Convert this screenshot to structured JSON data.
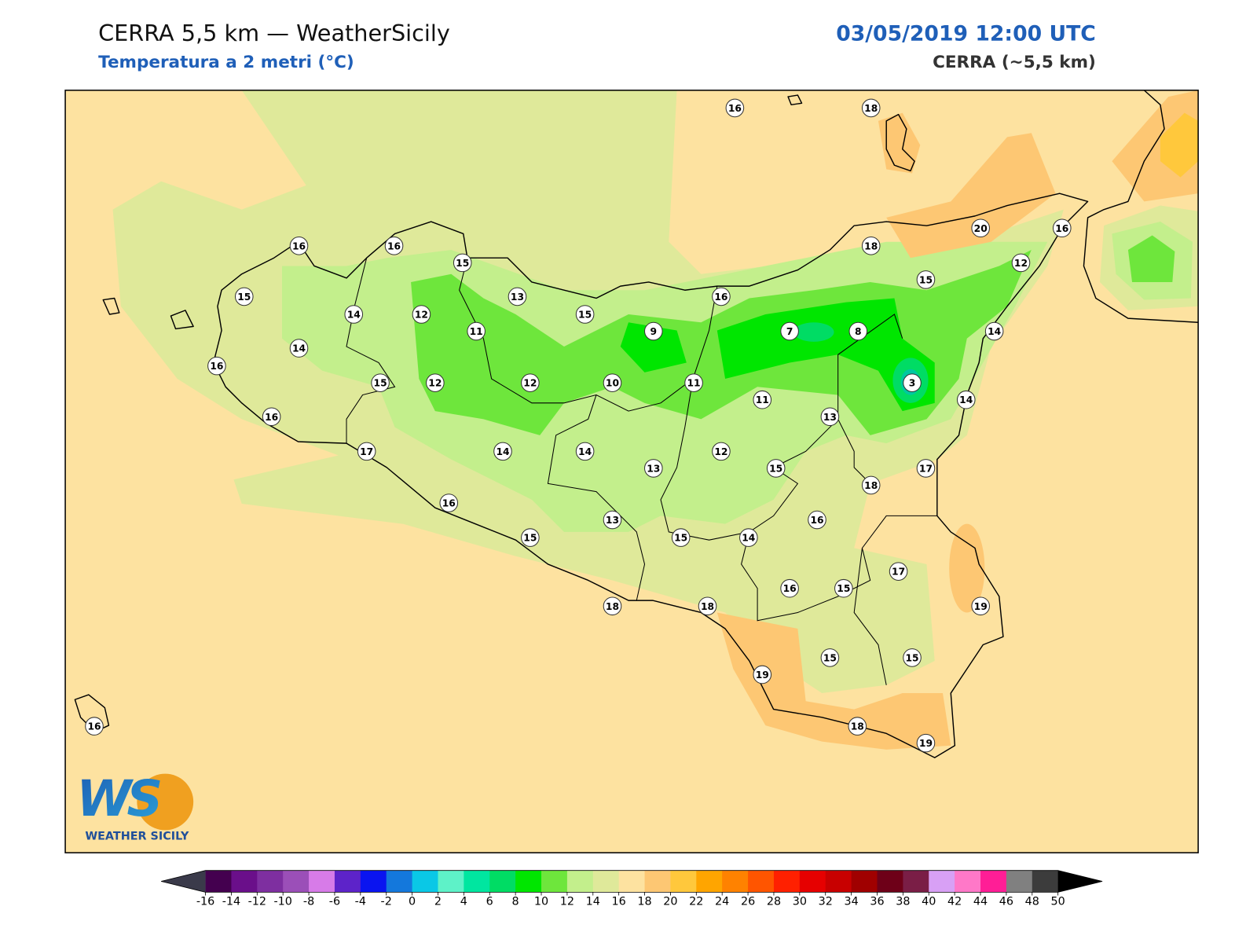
{
  "header": {
    "title": "CERRA 5,5 km — WeatherSicily",
    "subtitle": "Temperatura a 2 metri (°C)",
    "datetime": "03/05/2019 12:00 UTC",
    "model": "CERRA (~5,5 km)"
  },
  "stations": [
    16,
    18,
    16,
    16,
    15,
    18,
    20,
    16,
    12,
    15,
    14,
    12,
    13,
    15,
    16,
    15,
    14,
    11,
    9,
    7,
    8,
    14,
    16,
    15,
    12,
    12,
    10,
    11,
    11,
    3,
    14,
    16,
    13,
    17,
    14,
    14,
    12,
    13,
    15,
    17,
    18,
    16,
    13,
    16,
    15,
    15,
    14,
    17,
    16,
    15,
    19,
    18,
    18,
    15,
    15,
    19,
    18,
    19,
    16
  ],
  "colorbar": {
    "ticks": [
      -16,
      -14,
      -12,
      -10,
      -8,
      -6,
      -4,
      -2,
      0,
      2,
      4,
      6,
      8,
      10,
      12,
      14,
      16,
      18,
      20,
      22,
      24,
      26,
      28,
      30,
      32,
      34,
      36,
      38,
      40,
      42,
      44,
      46,
      48,
      50
    ],
    "colors": [
      "#44004f",
      "#6a0f8a",
      "#7e2fa0",
      "#9b4fb8",
      "#d77be8",
      "#5d23c9",
      "#0a14f0",
      "#1478dc",
      "#0ac8e6",
      "#5ef2c8",
      "#00e6a0",
      "#00dc64",
      "#00e600",
      "#6ee63c",
      "#c3ef8c",
      "#dfe99a",
      "#fde2a0",
      "#fdc773",
      "#ffc83c",
      "#ffa500",
      "#ff8200",
      "#ff5500",
      "#ff2000",
      "#e60000",
      "#c80000",
      "#a00000",
      "#6e0018",
      "#7a1e46",
      "#d8a0f5",
      "#ff78c8",
      "#ff1e96",
      "#808080",
      "#3c3c3c"
    ],
    "under_color": "#3a3a4a",
    "over_color": "#000000"
  },
  "logo": {
    "mark": "WS",
    "text": "WEATHER SICILY"
  }
}
